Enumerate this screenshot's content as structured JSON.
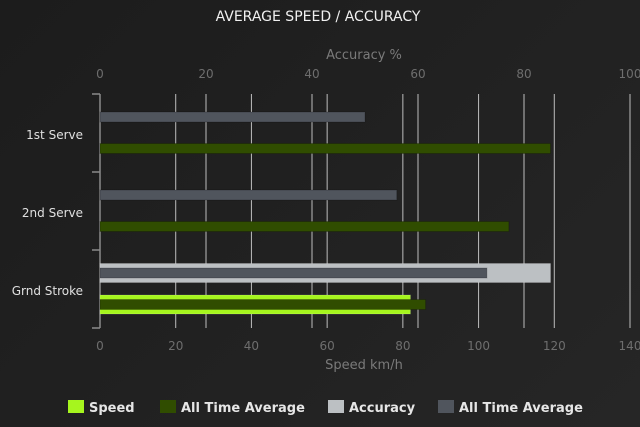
{
  "chart_data": {
    "type": "bar",
    "orientation": "horizontal",
    "title": "AVERAGE SPEED / ACCURACY",
    "categories": [
      "1st Serve",
      "2nd Serve",
      "Grnd Stroke"
    ],
    "axes": {
      "speed": {
        "label": "Speed km/h",
        "position": "bottom",
        "range": [
          0,
          140
        ],
        "ticks": [
          0,
          20,
          40,
          60,
          80,
          100,
          120,
          140
        ]
      },
      "accuracy": {
        "label": "Accuracy %",
        "position": "top",
        "range": [
          0,
          100
        ],
        "ticks": [
          0,
          20,
          40,
          60,
          80,
          100
        ]
      }
    },
    "grid": true,
    "legend_position": "bottom",
    "series": [
      {
        "name": "Speed",
        "axis": "speed",
        "color": "#a6f51e",
        "values": [
          null,
          null,
          82
        ]
      },
      {
        "name": "All Time Average",
        "axis": "speed",
        "color": "#304d00",
        "values": [
          119,
          108,
          86
        ]
      },
      {
        "name": "Accuracy",
        "axis": "accuracy",
        "color": "#bcc0c3",
        "values": [
          null,
          null,
          85
        ]
      },
      {
        "name": "All Time Average",
        "axis": "accuracy",
        "color": "#50555d",
        "values": [
          50,
          56,
          73
        ]
      }
    ]
  }
}
